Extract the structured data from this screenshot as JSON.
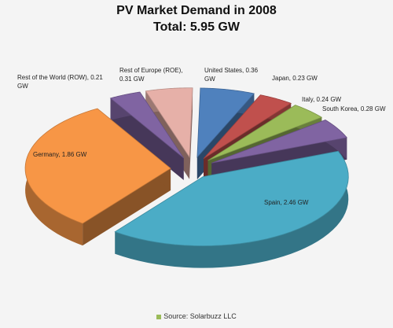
{
  "chart_data": {
    "type": "pie",
    "title": "PV Market Demand in 2008",
    "subtitle": "Total: 5.95 GW",
    "unit": "GW",
    "source": "Source: Solarbuzz LLC",
    "slices": [
      {
        "label": "Spain, 2.46 GW",
        "value": 2.46,
        "color": "#4bacc6"
      },
      {
        "label": "Germany, 1.86 GW",
        "value": 1.86,
        "color": "#f79646"
      },
      {
        "label": "Rest of the World (ROW), 0.21 GW",
        "value": 0.21,
        "color": "#8064a2"
      },
      {
        "label": "Rest of Europe (ROE), 0.31 GW",
        "value": 0.31,
        "color": "#e6b0a8"
      },
      {
        "label": "United States, 0.36 GW",
        "value": 0.36,
        "color": "#4f81bd"
      },
      {
        "label": "Japan, 0.23 GW",
        "value": 0.23,
        "color": "#c0504d"
      },
      {
        "label": "Italy, 0.24 GW",
        "value": 0.24,
        "color": "#9bbb59"
      },
      {
        "label": "South Korea, 0.28 GW",
        "value": 0.28,
        "color": "#8064a2"
      }
    ]
  }
}
